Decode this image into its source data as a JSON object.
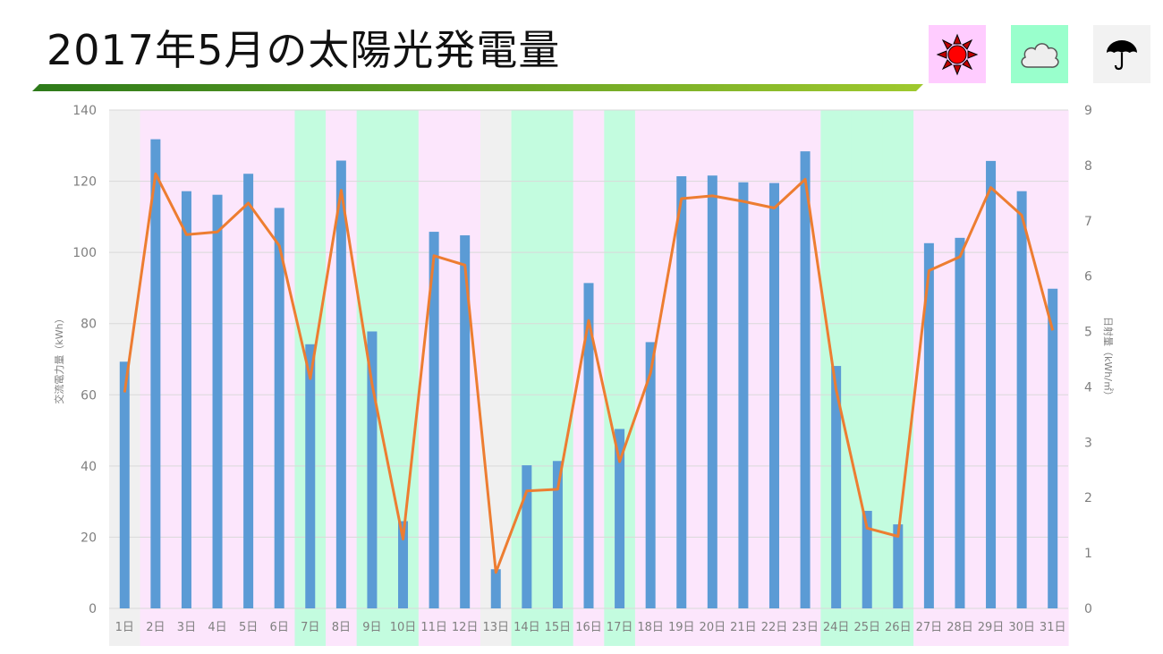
{
  "title": "2017年5月の太陽光発電量",
  "legend_icons": [
    {
      "name": "sun-icon",
      "weather": "sunny",
      "bg": "#ffccff"
    },
    {
      "name": "cloud-icon",
      "weather": "cloudy",
      "bg": "#99ffcc"
    },
    {
      "name": "umbrella-icon",
      "weather": "rainy",
      "bg": "#f2f2f2"
    }
  ],
  "colors": {
    "bar": "#5b9bd5",
    "line": "#ed7d31",
    "sunny_bg": "#fce6fc",
    "cloudy_bg": "#c3fcdf",
    "rainy_bg": "#f0f0f0",
    "title_bar_from": "#2d7a1a",
    "title_bar_to": "#9fc92e"
  },
  "chart_data": {
    "type": "bar",
    "categories": [
      "1日",
      "2日",
      "3日",
      "4日",
      "5日",
      "6日",
      "7日",
      "8日",
      "9日",
      "10日",
      "11日",
      "12日",
      "13日",
      "14日",
      "15日",
      "16日",
      "17日",
      "18日",
      "19日",
      "20日",
      "21日",
      "22日",
      "23日",
      "24日",
      "25日",
      "26日",
      "27日",
      "28日",
      "29日",
      "30日",
      "31日"
    ],
    "weather": [
      "rainy",
      "sunny",
      "sunny",
      "sunny",
      "sunny",
      "sunny",
      "cloudy",
      "sunny",
      "cloudy",
      "cloudy",
      "sunny",
      "sunny",
      "rainy",
      "cloudy",
      "cloudy",
      "sunny",
      "cloudy",
      "sunny",
      "sunny",
      "sunny",
      "sunny",
      "sunny",
      "sunny",
      "cloudy",
      "cloudy",
      "cloudy",
      "sunny",
      "sunny",
      "sunny",
      "sunny",
      "sunny"
    ],
    "bar_series": {
      "values": [
        69.3,
        131.8,
        117.2,
        116.2,
        122.1,
        112.5,
        74.2,
        125.8,
        77.8,
        24.5,
        105.8,
        104.8,
        11,
        40.2,
        41.4,
        91.4,
        50.4,
        74.8,
        121.4,
        121.6,
        119.7,
        119.5,
        128.4,
        68.1,
        27.4,
        23.6,
        102.6,
        104.1,
        125.7,
        117.2,
        89.8
      ],
      "axis": "left"
    },
    "line_series": {
      "values": [
        3.9,
        7.85,
        6.75,
        6.8,
        7.32,
        6.55,
        4.15,
        7.55,
        4.05,
        1.25,
        6.37,
        6.2,
        0.65,
        2.12,
        2.15,
        5.2,
        2.65,
        4.25,
        7.4,
        7.45,
        7.35,
        7.23,
        7.75,
        3.95,
        1.45,
        1.3,
        6.1,
        6.35,
        7.6,
        7.1,
        5.02
      ],
      "axis": "right"
    },
    "y_left": {
      "label": "交流電力量（kWh）",
      "min": 0,
      "max": 140,
      "ticks": [
        "0",
        "20",
        "40",
        "60",
        "80",
        "100",
        "120",
        "140"
      ]
    },
    "y_right": {
      "label": "日射量（kWh/㎡）",
      "min": 0,
      "max": 9,
      "ticks": [
        "0",
        "1",
        "2",
        "3",
        "4",
        "5",
        "6",
        "7",
        "8",
        "9"
      ]
    },
    "grid": true
  }
}
